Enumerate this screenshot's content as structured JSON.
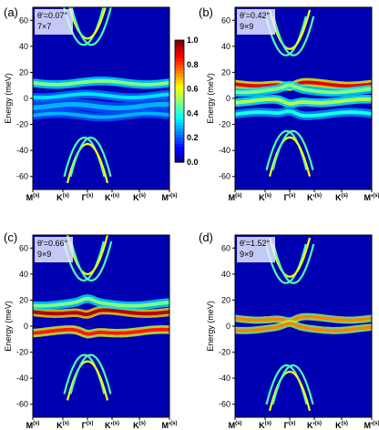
{
  "chart_data": [
    {
      "type": "heatmap",
      "panel_label": "(a)",
      "annotation": [
        "θ'=0.07°",
        "7×7"
      ],
      "ylabel": "Energy (meV)",
      "ylim": [
        -70,
        70
      ],
      "yticks": [
        -60,
        -40,
        -20,
        0,
        20,
        40,
        60
      ],
      "xticks": [
        "M(s)",
        "K(s)",
        "Γ(s)",
        "K'(s)",
        "K(s)",
        "M'(s)"
      ],
      "bands": [
        {
          "center": 12,
          "width": 3,
          "intensity": 0.5
        },
        {
          "center": 2,
          "width": 3,
          "intensity": 0.35
        },
        {
          "center": -6,
          "width": 4,
          "intensity": 0.3
        },
        {
          "center": -13,
          "width": 3,
          "intensity": 0.3
        }
      ],
      "cone_upper_min": 46,
      "cone_lower_max": -35,
      "colorbar": {
        "min": 0.0,
        "max": 1.0,
        "ticks": [
          "0.0",
          "0.2",
          "0.4",
          "0.6",
          "0.8",
          "1.0"
        ]
      }
    },
    {
      "type": "heatmap",
      "panel_label": "(b)",
      "annotation": [
        "θ'=0.42°",
        "9×9"
      ],
      "ylabel": "Energy (meV)",
      "ylim": [
        -70,
        70
      ],
      "yticks": [
        -60,
        -40,
        -20,
        0,
        20,
        40,
        60
      ],
      "xticks": [
        "M(s)",
        "K(s)",
        "Γ(s)",
        "K'(s)",
        "K(s)",
        "M'(s)"
      ],
      "bands": [
        {
          "center": 11,
          "width": 3,
          "intensity": 0.9
        },
        {
          "center": 6,
          "width": 3,
          "intensity": 0.5
        },
        {
          "center": -2,
          "width": 3,
          "intensity": 0.55
        },
        {
          "center": -12,
          "width": 3,
          "intensity": 0.4
        }
      ],
      "cone_upper_min": 38,
      "cone_lower_max": -30
    },
    {
      "type": "heatmap",
      "panel_label": "(c)",
      "annotation": [
        "θ'=0.66°",
        "9×9"
      ],
      "ylabel": "Energy (meV)",
      "ylim": [
        -70,
        70
      ],
      "yticks": [
        -60,
        -40,
        -20,
        0,
        20,
        40,
        60
      ],
      "xticks": [
        "M(s)",
        "K(s)",
        "Γ(s)",
        "K'(s)",
        "K(s)",
        "M'(s)"
      ],
      "bands": [
        {
          "center": 11,
          "width": 3,
          "intensity": 0.95
        },
        {
          "center": 17,
          "width": 3,
          "intensity": 0.5
        },
        {
          "center": -4,
          "width": 3,
          "intensity": 0.85
        }
      ],
      "cone_upper_min": 40,
      "cone_lower_max": -27
    },
    {
      "type": "heatmap",
      "panel_label": "(d)",
      "annotation": [
        "θ'=1.52°",
        "9×9"
      ],
      "ylabel": "Energy (meV)",
      "ylim": [
        -70,
        70
      ],
      "yticks": [
        -60,
        -40,
        -20,
        0,
        20,
        40,
        60
      ],
      "xticks": [
        "M(s)",
        "K(s)",
        "Γ(s)",
        "K'(s)",
        "K(s)",
        "M'(s)"
      ],
      "bands": [
        {
          "center": 6,
          "width": 2.5,
          "intensity": 0.75
        },
        {
          "center": -2,
          "width": 2.5,
          "intensity": 0.75
        }
      ],
      "cone_upper_min": 38,
      "cone_lower_max": -35
    }
  ]
}
